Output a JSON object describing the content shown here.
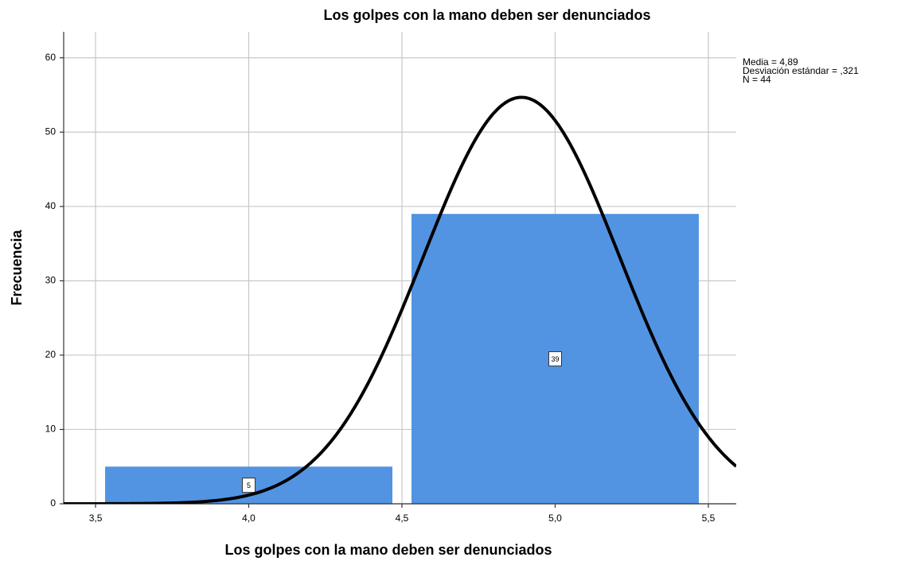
{
  "chart_data": {
    "type": "histogram",
    "title": "Los golpes con la mano deben ser denunciados",
    "x_label": "Los golpes con la mano deben ser denunciados",
    "y_label": "Frecuencia",
    "bins": [
      3.5,
      4.5,
      5.5
    ],
    "values": [
      5,
      39
    ],
    "color": "#5294e2",
    "xlim": [
      3.396,
      5.591
    ],
    "ylim": [
      0,
      63.5
    ],
    "xticks": [
      {
        "value": 3.5,
        "label": "3,5"
      },
      {
        "value": 4.0,
        "label": "4,0"
      },
      {
        "value": 4.5,
        "label": "4,5"
      },
      {
        "value": 5.0,
        "label": "5,0"
      },
      {
        "value": 5.5,
        "label": "5,5"
      }
    ],
    "yticks": [
      0,
      10,
      20,
      30,
      40,
      50,
      60
    ],
    "grid": true,
    "normal_curve": true,
    "stats": [
      {
        "value": 4.89,
        "label": "Media = 4,89"
      },
      {
        "value": 0.321,
        "label": "Desviación estándar = ,321"
      },
      {
        "value": 44,
        "label": "N = 44"
      }
    ]
  }
}
